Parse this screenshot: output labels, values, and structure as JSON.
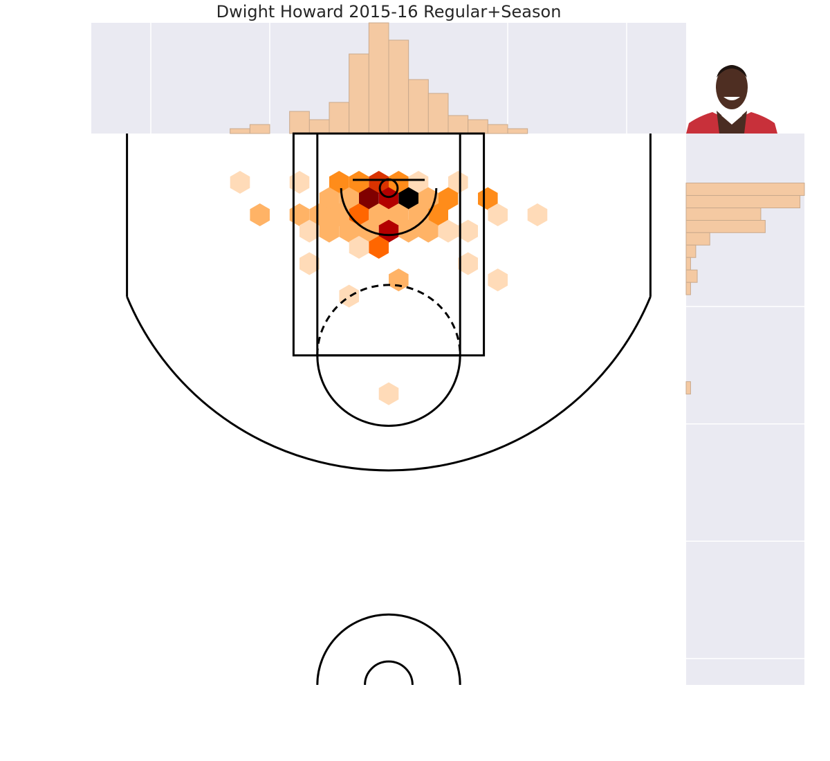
{
  "chart_data": [
    {
      "type": "hexbin",
      "title": "Dwight Howard 2015-16 Regular+Season",
      "x": [
        -125,
        -75,
        -41.7,
        -25,
        -8.3,
        8.3,
        25,
        58.3,
        -50,
        -33.3,
        -16.7,
        0,
        16.7,
        33.3,
        50,
        83.3,
        -108.3,
        -75,
        -58.3,
        -41.7,
        -25,
        -8.3,
        8.3,
        25,
        41.7,
        91.7,
        125,
        -66.7,
        -50,
        -33.3,
        -16.7,
        0,
        16.7,
        33.3,
        50,
        66.7,
        -25,
        -8.3,
        -66.7,
        66.7,
        8.3,
        91.7,
        -33.3,
        0
      ],
      "y": [
        -5.9,
        -5.9,
        -5.9,
        -5.9,
        -5.9,
        -5.9,
        -5.9,
        -5.9,
        8.0,
        8.0,
        8.0,
        8.0,
        8.0,
        8.0,
        8.0,
        8.0,
        21.8,
        21.8,
        21.8,
        21.8,
        21.8,
        21.8,
        21.8,
        21.8,
        21.8,
        21.8,
        21.8,
        35.7,
        35.7,
        35.7,
        35.7,
        35.7,
        35.7,
        35.7,
        35.7,
        35.7,
        49.5,
        49.5,
        63.4,
        63.4,
        77.3,
        77.3,
        91.1,
        174.3
      ],
      "values": [
        1,
        1,
        3,
        3,
        5,
        3,
        1,
        1,
        2,
        2,
        7,
        6,
        8,
        2,
        3,
        3,
        2,
        2,
        2,
        2,
        4,
        2,
        2,
        2,
        3,
        1,
        1,
        1,
        2,
        2,
        2,
        6,
        2,
        2,
        1,
        1,
        1,
        4,
        1,
        1,
        2,
        1,
        1,
        1
      ],
      "xlim": [
        -250,
        250
      ],
      "ylim": [
        -47.5,
        422.5
      ],
      "y_inverted": true,
      "clim": [
        0,
        8
      ],
      "cmap": [
        "#ffffff",
        "#ffdbb8",
        "#ffb366",
        "#ff8c1a",
        "#ff6600",
        "#d93300",
        "#b30000",
        "#800000",
        "#000000"
      ]
    },
    {
      "type": "histogram",
      "orientation": "vertical",
      "bins": [
        -250,
        -233.33,
        -216.67,
        -200,
        -183.33,
        -166.67,
        -150,
        -133.33,
        -116.67,
        -100,
        -83.33,
        -66.67,
        -50,
        -33.33,
        -16.67,
        0,
        16.67,
        33.33,
        50,
        66.67,
        83.33,
        100,
        116.67,
        133.33,
        150,
        166.67,
        183.33,
        200,
        216.67,
        233.33,
        250
      ],
      "values": [
        0,
        0,
        0,
        0,
        0,
        0,
        0,
        7,
        13,
        0,
        32,
        20,
        45,
        115,
        160,
        135,
        78,
        58,
        26,
        20,
        13,
        7,
        0,
        0,
        0,
        0,
        0,
        0,
        0,
        0
      ],
      "xlim": [
        -250,
        250
      ],
      "ylim": [
        0,
        160
      ],
      "xticks": [
        -200,
        -100,
        0,
        100,
        200
      ],
      "grid": true,
      "color": "#f4c9a2",
      "edgecolor": "#c9a98c",
      "background": "#eaeaf2"
    },
    {
      "type": "histogram",
      "orientation": "horizontal",
      "bins": [
        -5.3,
        5.3,
        15.9,
        26.5,
        37.0,
        47.6,
        58.2,
        68.8,
        79.4,
        89.9,
        100.5,
        111.1,
        121.7,
        132.3,
        142.8,
        153.4,
        164.0,
        174.6
      ],
      "values": [
        160,
        154,
        101,
        107,
        32,
        13,
        6,
        15,
        6,
        0,
        0,
        0,
        0,
        0,
        0,
        0,
        6
      ],
      "xlim": [
        0,
        160
      ],
      "ylim": [
        -47.5,
        422.5
      ],
      "y_inverted": true,
      "yticks": [
        0,
        100,
        200,
        300,
        400
      ],
      "grid": true,
      "color": "#f4c9a2",
      "edgecolor": "#c9a98c",
      "background": "#eaeaf2"
    }
  ]
}
